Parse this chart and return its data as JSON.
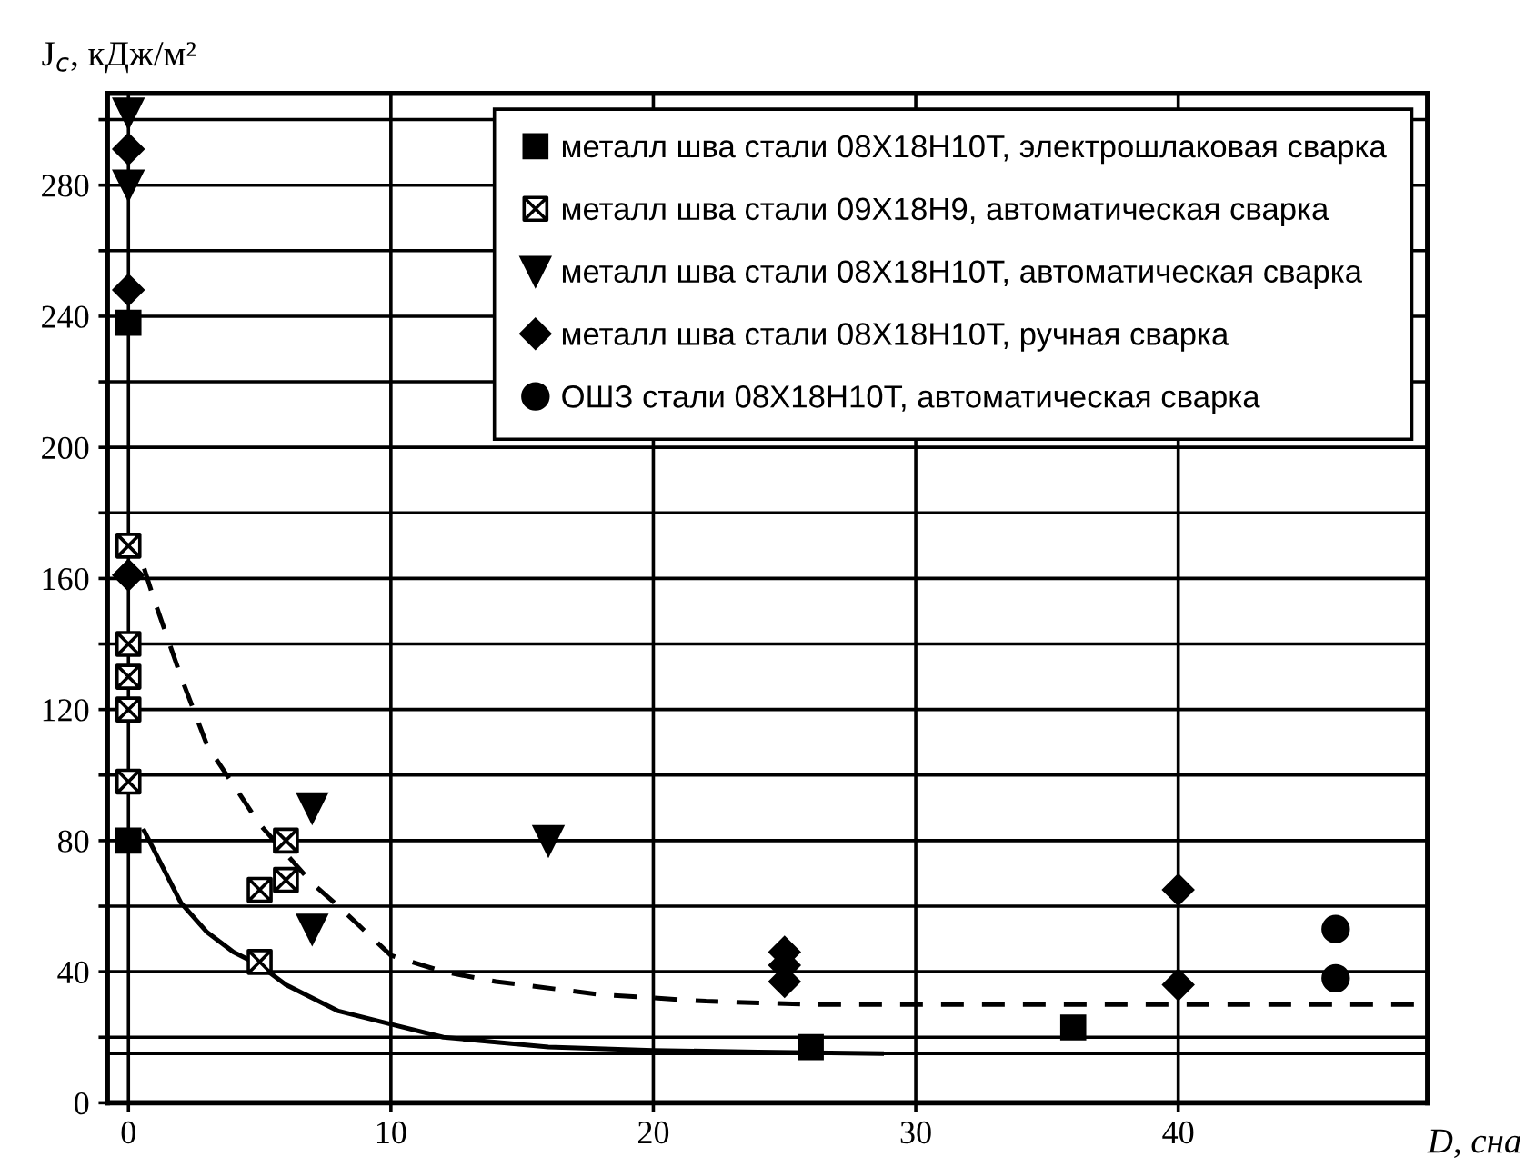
{
  "chart_data": {
    "type": "scatter",
    "xlabel": "D, сна",
    "ylabel": "J$_{c}$, кДж/м²",
    "xlim": [
      -0.8,
      49.5
    ],
    "ylim": [
      0,
      308
    ],
    "xticks": [
      0,
      10,
      20,
      30,
      40
    ],
    "yticks": [
      0,
      {
        "value": 20,
        "label": null
      },
      40,
      {
        "value": 60,
        "label": null
      },
      80,
      {
        "value": 100,
        "label": null
      },
      120,
      {
        "value": 140,
        "label": null
      },
      160,
      {
        "value": 180,
        "label": null
      },
      200,
      {
        "value": 220,
        "label": null
      },
      240,
      {
        "value": 260,
        "label": null
      },
      280,
      {
        "value": 300,
        "label": null
      }
    ],
    "grid": true,
    "legend": "top right",
    "ref_lines": [
      {
        "axis": "y",
        "value": 15,
        "color": "#000000",
        "line_style": "solid"
      }
    ],
    "series": [
      {
        "name": "металл шва стали 08Х18Н10Т, электрошлаковая сварка",
        "marker": "square",
        "color": "#000000",
        "x": [
          0,
          0,
          26,
          36
        ],
        "values": [
          80,
          238,
          17,
          23
        ]
      },
      {
        "name": "металл шва стали 09Х18Н9, автоматическая сварка",
        "marker": "cross",
        "color": "#000000",
        "x": [
          0,
          0,
          0,
          0,
          0,
          5,
          6,
          6,
          5
        ],
        "values": [
          170,
          140,
          130,
          120,
          98,
          65,
          68,
          80,
          43
        ]
      },
      {
        "name": "металл шва стали 08Х18Н10Т, автоматическая сварка",
        "marker": "triangle",
        "color": "#000000",
        "x": [
          0,
          0,
          7,
          7,
          16
        ],
        "values": [
          302,
          280,
          90,
          53,
          80
        ]
      },
      {
        "name": "металл шва стали 08Х18Н10Т, ручная сварка",
        "marker": "diamond",
        "color": "#000000",
        "x": [
          0,
          0,
          0,
          25,
          25,
          25,
          40,
          40
        ],
        "values": [
          291,
          248,
          161,
          46,
          42,
          37,
          65,
          36
        ]
      },
      {
        "name": "ОШЗ стали 08Х18Н10Т, автоматическая сварка",
        "marker": "circle",
        "color": "#000000",
        "x": [
          46,
          46
        ],
        "values": [
          53,
          38
        ]
      },
      {
        "type": "line",
        "marker": "none",
        "line_style": "solid",
        "color": "#000000",
        "x": [
          0.6,
          2,
          3,
          4,
          5,
          6,
          8,
          10,
          12,
          16,
          20,
          24,
          28.7
        ],
        "values": [
          83,
          61,
          52,
          46,
          42,
          36,
          28,
          24,
          20,
          17,
          16,
          15.5,
          15
        ]
      },
      {
        "type": "line",
        "marker": "none",
        "line_style": "dashed",
        "color": "#000000",
        "x": [
          0.6,
          1,
          2,
          3,
          5,
          7,
          8,
          10,
          12,
          14,
          18,
          22,
          26,
          30,
          40,
          49.5
        ],
        "values": [
          163,
          153,
          130,
          109,
          85,
          67,
          60,
          45,
          40,
          37,
          33,
          31,
          30,
          30,
          30,
          30
        ]
      }
    ]
  }
}
